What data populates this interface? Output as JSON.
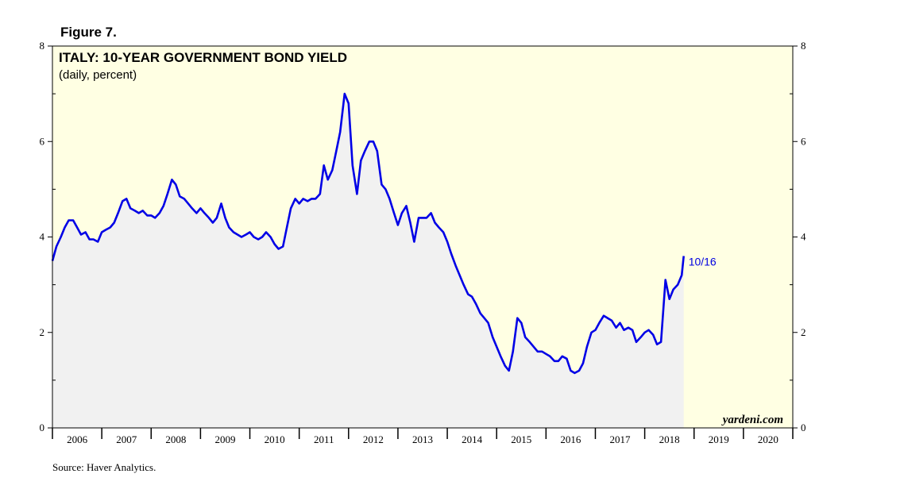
{
  "figure_label": "Figure 7.",
  "source": "Source: Haver Analytics.",
  "watermark": "yardeni.com",
  "colors": {
    "line": "#0000e6",
    "plot_bg": "#ffffe3",
    "area_fill": "#f1f1f1",
    "end_label": "#0000e0"
  },
  "chart_data": {
    "type": "area",
    "title": "ITALY: 10-YEAR GOVERNMENT BOND YIELD",
    "subtitle": "(daily, percent)",
    "xlabel": "",
    "ylabel": "",
    "xlim": [
      2006.0,
      2021.0
    ],
    "ylim": [
      0,
      8
    ],
    "y_ticks": [
      0,
      2,
      4,
      6,
      8
    ],
    "x_tick_labels": [
      "2006",
      "2007",
      "2008",
      "2009",
      "2010",
      "2011",
      "2012",
      "2013",
      "2014",
      "2015",
      "2016",
      "2017",
      "2018",
      "2019",
      "2020"
    ],
    "end_label": "10/16",
    "grid": false,
    "series": [
      {
        "values": [
          [
            2006.0,
            3.5
          ],
          [
            2006.08,
            3.8
          ],
          [
            2006.17,
            4.0
          ],
          [
            2006.25,
            4.2
          ],
          [
            2006.33,
            4.35
          ],
          [
            2006.42,
            4.35
          ],
          [
            2006.5,
            4.2
          ],
          [
            2006.58,
            4.05
          ],
          [
            2006.67,
            4.1
          ],
          [
            2006.75,
            3.95
          ],
          [
            2006.83,
            3.95
          ],
          [
            2006.92,
            3.9
          ],
          [
            2007.0,
            4.1
          ],
          [
            2007.08,
            4.15
          ],
          [
            2007.17,
            4.2
          ],
          [
            2007.25,
            4.3
          ],
          [
            2007.33,
            4.5
          ],
          [
            2007.42,
            4.75
          ],
          [
            2007.5,
            4.8
          ],
          [
            2007.58,
            4.6
          ],
          [
            2007.67,
            4.55
          ],
          [
            2007.75,
            4.5
          ],
          [
            2007.83,
            4.55
          ],
          [
            2007.92,
            4.45
          ],
          [
            2008.0,
            4.45
          ],
          [
            2008.08,
            4.4
          ],
          [
            2008.17,
            4.5
          ],
          [
            2008.25,
            4.65
          ],
          [
            2008.33,
            4.9
          ],
          [
            2008.42,
            5.2
          ],
          [
            2008.5,
            5.1
          ],
          [
            2008.58,
            4.85
          ],
          [
            2008.67,
            4.8
          ],
          [
            2008.75,
            4.7
          ],
          [
            2008.83,
            4.6
          ],
          [
            2008.92,
            4.5
          ],
          [
            2009.0,
            4.6
          ],
          [
            2009.08,
            4.5
          ],
          [
            2009.17,
            4.4
          ],
          [
            2009.25,
            4.3
          ],
          [
            2009.33,
            4.4
          ],
          [
            2009.42,
            4.7
          ],
          [
            2009.5,
            4.4
          ],
          [
            2009.58,
            4.2
          ],
          [
            2009.67,
            4.1
          ],
          [
            2009.75,
            4.05
          ],
          [
            2009.83,
            4.0
          ],
          [
            2009.92,
            4.05
          ],
          [
            2010.0,
            4.1
          ],
          [
            2010.08,
            4.0
          ],
          [
            2010.17,
            3.95
          ],
          [
            2010.25,
            4.0
          ],
          [
            2010.33,
            4.1
          ],
          [
            2010.42,
            4.0
          ],
          [
            2010.5,
            3.85
          ],
          [
            2010.58,
            3.75
          ],
          [
            2010.67,
            3.8
          ],
          [
            2010.75,
            4.2
          ],
          [
            2010.83,
            4.6
          ],
          [
            2010.92,
            4.8
          ],
          [
            2011.0,
            4.7
          ],
          [
            2011.08,
            4.8
          ],
          [
            2011.17,
            4.75
          ],
          [
            2011.25,
            4.8
          ],
          [
            2011.33,
            4.8
          ],
          [
            2011.42,
            4.9
          ],
          [
            2011.5,
            5.5
          ],
          [
            2011.58,
            5.2
          ],
          [
            2011.67,
            5.4
          ],
          [
            2011.75,
            5.8
          ],
          [
            2011.83,
            6.2
          ],
          [
            2011.92,
            7.0
          ],
          [
            2012.0,
            6.8
          ],
          [
            2012.08,
            5.5
          ],
          [
            2012.17,
            4.9
          ],
          [
            2012.25,
            5.6
          ],
          [
            2012.33,
            5.8
          ],
          [
            2012.42,
            6.0
          ],
          [
            2012.5,
            6.0
          ],
          [
            2012.58,
            5.8
          ],
          [
            2012.67,
            5.1
          ],
          [
            2012.75,
            5.0
          ],
          [
            2012.83,
            4.8
          ],
          [
            2012.92,
            4.5
          ],
          [
            2013.0,
            4.25
          ],
          [
            2013.08,
            4.5
          ],
          [
            2013.17,
            4.65
          ],
          [
            2013.25,
            4.3
          ],
          [
            2013.33,
            3.9
          ],
          [
            2013.42,
            4.4
          ],
          [
            2013.5,
            4.4
          ],
          [
            2013.58,
            4.4
          ],
          [
            2013.67,
            4.5
          ],
          [
            2013.75,
            4.3
          ],
          [
            2013.83,
            4.2
          ],
          [
            2013.92,
            4.1
          ],
          [
            2014.0,
            3.9
          ],
          [
            2014.08,
            3.65
          ],
          [
            2014.17,
            3.4
          ],
          [
            2014.25,
            3.2
          ],
          [
            2014.33,
            3.0
          ],
          [
            2014.42,
            2.8
          ],
          [
            2014.5,
            2.75
          ],
          [
            2014.58,
            2.6
          ],
          [
            2014.67,
            2.4
          ],
          [
            2014.75,
            2.3
          ],
          [
            2014.83,
            2.2
          ],
          [
            2014.92,
            1.9
          ],
          [
            2015.0,
            1.7
          ],
          [
            2015.08,
            1.5
          ],
          [
            2015.17,
            1.3
          ],
          [
            2015.25,
            1.2
          ],
          [
            2015.33,
            1.6
          ],
          [
            2015.42,
            2.3
          ],
          [
            2015.5,
            2.2
          ],
          [
            2015.58,
            1.9
          ],
          [
            2015.67,
            1.8
          ],
          [
            2015.75,
            1.7
          ],
          [
            2015.83,
            1.6
          ],
          [
            2015.92,
            1.6
          ],
          [
            2016.0,
            1.55
          ],
          [
            2016.08,
            1.5
          ],
          [
            2016.17,
            1.4
          ],
          [
            2016.25,
            1.4
          ],
          [
            2016.33,
            1.5
          ],
          [
            2016.42,
            1.45
          ],
          [
            2016.5,
            1.2
          ],
          [
            2016.58,
            1.15
          ],
          [
            2016.67,
            1.2
          ],
          [
            2016.75,
            1.35
          ],
          [
            2016.83,
            1.7
          ],
          [
            2016.92,
            2.0
          ],
          [
            2017.0,
            2.05
          ],
          [
            2017.08,
            2.2
          ],
          [
            2017.17,
            2.35
          ],
          [
            2017.25,
            2.3
          ],
          [
            2017.33,
            2.25
          ],
          [
            2017.42,
            2.1
          ],
          [
            2017.5,
            2.2
          ],
          [
            2017.58,
            2.05
          ],
          [
            2017.67,
            2.1
          ],
          [
            2017.75,
            2.05
          ],
          [
            2017.83,
            1.8
          ],
          [
            2017.92,
            1.9
          ],
          [
            2018.0,
            2.0
          ],
          [
            2018.08,
            2.05
          ],
          [
            2018.17,
            1.95
          ],
          [
            2018.25,
            1.75
          ],
          [
            2018.33,
            1.8
          ],
          [
            2018.42,
            3.1
          ],
          [
            2018.5,
            2.7
          ],
          [
            2018.58,
            2.9
          ],
          [
            2018.67,
            3.0
          ],
          [
            2018.75,
            3.2
          ],
          [
            2018.79,
            3.6
          ]
        ]
      }
    ]
  }
}
